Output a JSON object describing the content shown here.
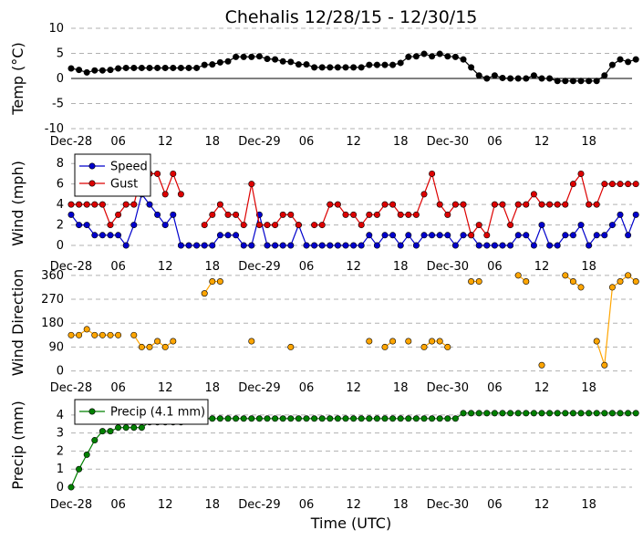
{
  "chart_data": [
    {
      "type": "line",
      "title": "Chehalis 12/28/15 - 12/30/15",
      "ylabel": "Temp ($^\\circ$C)",
      "ylabel_display": "Temp (°C)",
      "ylim": [
        -10,
        10
      ],
      "yticks": [
        10,
        5,
        0,
        -5,
        -10
      ],
      "xtick_labels": [
        "Dec-28",
        "06",
        "12",
        "18",
        "Dec-29",
        "06",
        "12",
        "18",
        "Dec-30",
        "06",
        "12",
        "18"
      ],
      "x_hours_per_point": 1,
      "zero_line": true,
      "series": [
        {
          "values": [
            2.0,
            1.7,
            1.2,
            1.6,
            1.6,
            1.7,
            2.0,
            2.1,
            2.1,
            2.1,
            2.1,
            2.1,
            2.1,
            2.1,
            2.1,
            2.1,
            2.1,
            2.7,
            2.8,
            3.2,
            3.4,
            4.3,
            4.3,
            4.3,
            4.4,
            3.9,
            3.8,
            3.4,
            3.3,
            2.8,
            2.8,
            2.2,
            2.2,
            2.2,
            2.2,
            2.2,
            2.2,
            2.2,
            2.7,
            2.7,
            2.7,
            2.7,
            3.1,
            4.3,
            4.4,
            4.9,
            4.4,
            4.9,
            4.4,
            4.3,
            3.8,
            2.2,
            0.6,
            0.0,
            0.6,
            0.1,
            0.0,
            0.0,
            0.0,
            0.6,
            0.0,
            0.0,
            -0.5,
            -0.5,
            -0.5,
            -0.5,
            -0.5,
            -0.5,
            0.6,
            2.7,
            3.8,
            3.3,
            3.8
          ],
          "color": "#000000"
        }
      ]
    },
    {
      "type": "line",
      "ylabel": "Wind (mph)",
      "ylim": [
        -0.8,
        9
      ],
      "yticks": [
        8,
        6,
        4,
        2,
        0
      ],
      "xtick_labels": [
        "Dec-28",
        "06",
        "12",
        "18",
        "Dec-29",
        "06",
        "12",
        "18",
        "Dec-30",
        "06",
        "12",
        "18"
      ],
      "legend_position": "upper-left",
      "series": [
        {
          "name": "Speed",
          "color": "#0000cc",
          "values": [
            3,
            2,
            2,
            1,
            1,
            1,
            1,
            0,
            2,
            5,
            4,
            3,
            2,
            3,
            0,
            0,
            0,
            0,
            0,
            1,
            1,
            1,
            0,
            0,
            3,
            0,
            0,
            0,
            0,
            2,
            0,
            0,
            0,
            0,
            0,
            0,
            0,
            0,
            1,
            0,
            1,
            1,
            0,
            1,
            0,
            1,
            1,
            1,
            1,
            0,
            1,
            1,
            0,
            0,
            0,
            0,
            0,
            1,
            1,
            0,
            2,
            0,
            0,
            1,
            1,
            2,
            0,
            1,
            1,
            2,
            3,
            1,
            3
          ]
        },
        {
          "name": "Gust",
          "color": "#dd0000",
          "values": [
            4,
            4,
            4,
            4,
            4,
            2,
            3,
            4,
            4,
            7,
            7,
            7,
            5,
            7,
            5,
            null,
            null,
            2,
            3,
            4,
            3,
            3,
            2,
            6,
            2,
            2,
            2,
            3,
            3,
            2,
            null,
            2,
            2,
            4,
            4,
            3,
            3,
            2,
            3,
            3,
            4,
            4,
            3,
            3,
            3,
            5,
            7,
            4,
            3,
            4,
            4,
            1,
            2,
            1,
            4,
            4,
            2,
            4,
            4,
            5,
            4,
            4,
            4,
            4,
            6,
            7,
            4,
            4,
            6,
            6,
            6,
            6,
            6
          ]
        }
      ]
    },
    {
      "type": "scatter",
      "ylabel": "Wind Direction",
      "ylim": [
        -15,
        380
      ],
      "yticks": [
        360,
        270,
        180,
        90,
        0
      ],
      "xtick_labels": [
        "Dec-28",
        "06",
        "12",
        "18",
        "Dec-29",
        "06",
        "12",
        "18",
        "Dec-30",
        "06",
        "12",
        "18"
      ],
      "series": [
        {
          "color": "#ffa500",
          "values": [
            135,
            135,
            157,
            135,
            135,
            135,
            135,
            null,
            135,
            90,
            90,
            112,
            90,
            112,
            null,
            null,
            null,
            292,
            337,
            337,
            null,
            null,
            null,
            112,
            null,
            null,
            null,
            null,
            90,
            null,
            null,
            null,
            null,
            null,
            null,
            null,
            null,
            null,
            112,
            null,
            90,
            112,
            null,
            112,
            null,
            90,
            112,
            112,
            90,
            null,
            null,
            337,
            337,
            null,
            null,
            null,
            null,
            360,
            337,
            null,
            22,
            null,
            null,
            360,
            337,
            315,
            null,
            112,
            22,
            315,
            337,
            360,
            337
          ]
        }
      ]
    },
    {
      "type": "line",
      "ylabel": "Precip (mm)",
      "ylim": [
        -0.25,
        4.9
      ],
      "yticks": [
        4,
        3,
        2,
        1,
        0
      ],
      "xtick_labels": [
        "Dec-28",
        "06",
        "12",
        "18",
        "Dec-29",
        "06",
        "12",
        "18",
        "Dec-30",
        "06",
        "12",
        "18"
      ],
      "xlabel": "Time (UTC)",
      "legend_position": "upper-left",
      "series": [
        {
          "name": "Precip (4.1 mm)",
          "color": "#008000",
          "values": [
            0.0,
            1.0,
            1.8,
            2.6,
            3.1,
            3.1,
            3.3,
            3.3,
            3.3,
            3.3,
            3.6,
            3.6,
            3.6,
            3.6,
            3.6,
            3.8,
            3.8,
            3.8,
            3.8,
            3.8,
            3.8,
            3.8,
            3.8,
            3.8,
            3.8,
            3.8,
            3.8,
            3.8,
            3.8,
            3.8,
            3.8,
            3.8,
            3.8,
            3.8,
            3.8,
            3.8,
            3.8,
            3.8,
            3.8,
            3.8,
            3.8,
            3.8,
            3.8,
            3.8,
            3.8,
            3.8,
            3.8,
            3.8,
            3.8,
            3.8,
            4.1,
            4.1,
            4.1,
            4.1,
            4.1,
            4.1,
            4.1,
            4.1,
            4.1,
            4.1,
            4.1,
            4.1,
            4.1,
            4.1,
            4.1,
            4.1,
            4.1,
            4.1,
            4.1,
            4.1,
            4.1,
            4.1,
            4.1
          ]
        }
      ]
    }
  ]
}
